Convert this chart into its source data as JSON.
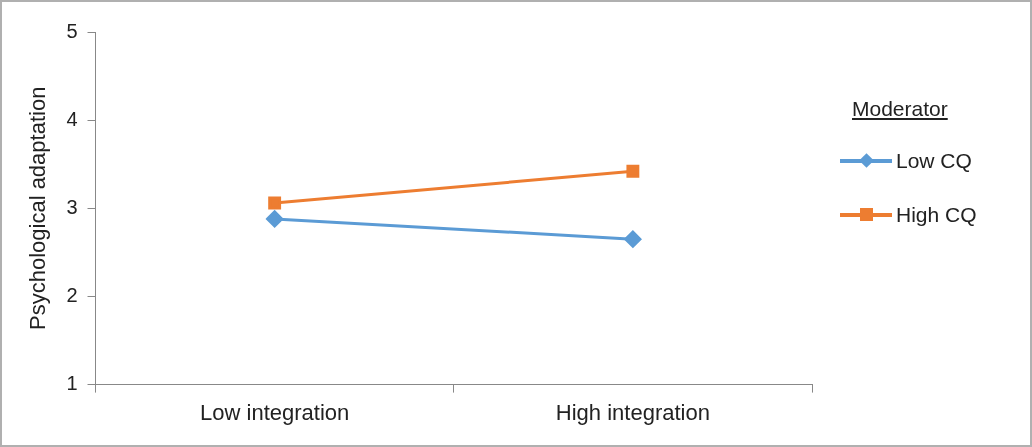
{
  "chart_data": {
    "type": "line",
    "ylabel": "Psychological adaptation",
    "legend_title": "Moderator",
    "legend": "right",
    "grid": false,
    "categories": [
      "Low integration",
      "High integration"
    ],
    "ylim": [
      1,
      5
    ],
    "yticks": [
      1,
      2,
      3,
      4,
      5
    ],
    "series": [
      {
        "name": "Low CQ",
        "color": "#5b9bd5",
        "marker": "diamond",
        "values": [
          2.88,
          2.65
        ]
      },
      {
        "name": "High CQ",
        "color": "#ed7d31",
        "marker": "square",
        "values": [
          3.06,
          3.42
        ]
      }
    ]
  }
}
